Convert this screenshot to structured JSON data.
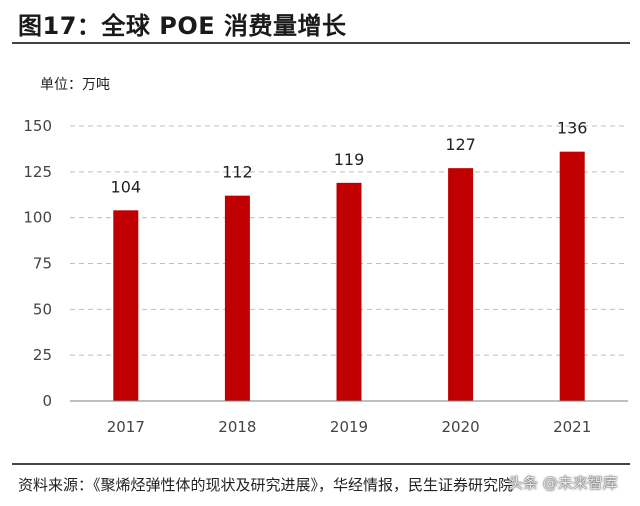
{
  "header": {
    "title": "图17：全球 POE 消费量增长",
    "unit": "单位：万吨"
  },
  "footer": {
    "source": "资料来源：《聚烯烃弹性体的现状及研究进展》，华经情报，民生证券研究院",
    "watermark": "头条 @未来智库"
  },
  "colors": {
    "bar": "#c00000",
    "grid": "#bfbfbf",
    "axis": "#7f7f7f"
  },
  "chart_data": {
    "type": "bar",
    "title": "全球 POE 消费量增长",
    "ylabel": "单位：万吨",
    "xlabel": "",
    "categories": [
      "2017",
      "2018",
      "2019",
      "2020",
      "2021"
    ],
    "values": [
      104,
      112,
      119,
      127,
      136
    ],
    "ylim": [
      0,
      150
    ],
    "yticks": [
      0,
      25,
      50,
      75,
      100,
      125,
      150
    ],
    "grid": true,
    "legend": "none"
  }
}
